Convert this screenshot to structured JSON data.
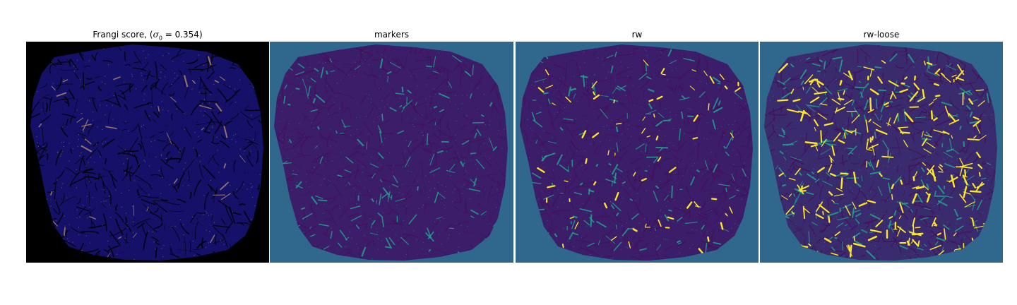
{
  "panels": [
    {
      "id": "frangi",
      "title_prefix": "Frangi score, (",
      "title_symbol": "σ",
      "title_sub": "0",
      "title_suffix": " = 0.354)",
      "background": "#000000",
      "fill": "#151168",
      "vessel": "#c89a6e",
      "dark": "#000000"
    },
    {
      "id": "markers",
      "title": "markers",
      "background": "#2f688c",
      "fill": "#3b1d6a",
      "vessel": "#21a38b",
      "dark": "#44105a"
    },
    {
      "id": "rw",
      "title": "rw",
      "background": "#2f688c",
      "fill": "#3b1d6a",
      "vessel": "#21a38b",
      "highlight": "#fde725",
      "dark": "#44105a"
    },
    {
      "id": "rw-loose",
      "title": "rw-loose",
      "background": "#2f688c",
      "fill": "#3a2a6e",
      "vessel": "#21a38b",
      "highlight": "#fde725",
      "dark": "#44105a"
    }
  ]
}
